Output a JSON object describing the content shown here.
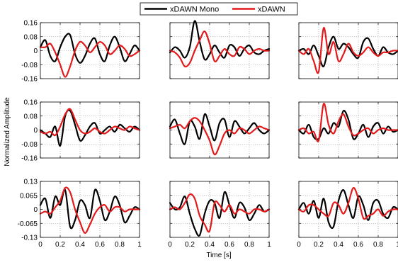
{
  "figure": {
    "ylabel": "Normalized Amplitude",
    "xlabel": "Time [s]"
  },
  "legend": {
    "entries": [
      {
        "name": "xDAWN Mono",
        "color": "#000000"
      },
      {
        "name": "xDAWN",
        "color": "#e31a1c"
      }
    ],
    "placement": "top-center"
  },
  "chart_data": [
    {
      "type": "line",
      "row": 1,
      "col": 1,
      "xlim": [
        0,
        1
      ],
      "ylim": [
        -0.16,
        0.16
      ],
      "yticks": [
        "0.16",
        "0.08",
        "0",
        "-0.08",
        "-0.16"
      ],
      "xticks": [],
      "x": [
        0,
        0.05,
        0.1,
        0.15,
        0.2,
        0.25,
        0.3,
        0.35,
        0.4,
        0.45,
        0.5,
        0.55,
        0.6,
        0.65,
        0.7,
        0.75,
        0.8,
        0.85,
        0.9,
        0.95,
        1.0
      ],
      "series": [
        {
          "name": "xDAWN Mono",
          "color": "#000000",
          "values": [
            0.02,
            0.06,
            -0.03,
            -0.06,
            0.02,
            0.08,
            0.09,
            -0.02,
            -0.07,
            -0.03,
            0.04,
            0.07,
            -0.02,
            -0.06,
            0.03,
            0.08,
            0.02,
            -0.06,
            -0.02,
            0.03,
            0.0
          ]
        },
        {
          "name": "xDAWN",
          "color": "#e31a1c",
          "values": [
            0.02,
            0.02,
            0.04,
            -0.01,
            -0.08,
            -0.15,
            -0.09,
            0.0,
            0.05,
            0.03,
            -0.01,
            0.02,
            0.05,
            0.03,
            -0.02,
            0.0,
            0.03,
            0.01,
            -0.03,
            -0.02,
            0.0
          ]
        }
      ]
    },
    {
      "type": "line",
      "row": 1,
      "col": 2,
      "xlim": [
        0,
        1
      ],
      "ylim": [
        -0.16,
        0.16
      ],
      "x": [
        0,
        0.05,
        0.1,
        0.15,
        0.2,
        0.25,
        0.3,
        0.35,
        0.4,
        0.45,
        0.5,
        0.55,
        0.6,
        0.65,
        0.7,
        0.75,
        0.8,
        0.85,
        0.9,
        0.95,
        1.0
      ],
      "series": [
        {
          "name": "xDAWN Mono",
          "color": "#000000",
          "values": [
            -0.01,
            0.02,
            0.0,
            -0.04,
            0.02,
            0.17,
            0.05,
            -0.05,
            -0.02,
            0.03,
            -0.01,
            -0.04,
            0.03,
            0.02,
            -0.03,
            0.01,
            0.03,
            -0.01,
            -0.02,
            0.0,
            0.01
          ]
        },
        {
          "name": "xDAWN",
          "color": "#e31a1c",
          "values": [
            0.0,
            -0.01,
            -0.04,
            -0.09,
            -0.07,
            0.0,
            0.06,
            0.11,
            0.04,
            -0.06,
            -0.03,
            0.01,
            -0.02,
            -0.03,
            0.02,
            0.01,
            -0.02,
            0.0,
            0.01,
            0.0,
            0.0
          ]
        }
      ]
    },
    {
      "type": "line",
      "row": 1,
      "col": 3,
      "xlim": [
        0,
        1
      ],
      "ylim": [
        -0.16,
        0.16
      ],
      "x": [
        0,
        0.05,
        0.1,
        0.15,
        0.2,
        0.25,
        0.3,
        0.35,
        0.4,
        0.45,
        0.5,
        0.55,
        0.6,
        0.65,
        0.7,
        0.75,
        0.8,
        0.85,
        0.9,
        0.95,
        1.0
      ],
      "series": [
        {
          "name": "xDAWN Mono",
          "color": "#000000",
          "values": [
            0.0,
            0.01,
            -0.02,
            0.03,
            -0.03,
            -0.09,
            0.02,
            0.08,
            0.01,
            0.04,
            0.02,
            -0.02,
            -0.04,
            0.05,
            0.07,
            0.01,
            -0.03,
            0.02,
            -0.01,
            -0.02,
            0.0
          ]
        },
        {
          "name": "xDAWN",
          "color": "#e31a1c",
          "values": [
            0.0,
            -0.02,
            0.01,
            -0.06,
            -0.12,
            0.13,
            -0.02,
            0.05,
            -0.06,
            -0.02,
            0.04,
            -0.01,
            -0.03,
            -0.01,
            0.02,
            -0.01,
            -0.03,
            -0.01,
            -0.01,
            0.0,
            0.0
          ]
        }
      ]
    },
    {
      "type": "line",
      "row": 2,
      "col": 1,
      "xlim": [
        0,
        1
      ],
      "ylim": [
        -0.16,
        0.16
      ],
      "yticks": [
        "0.16",
        "0.08",
        "0",
        "-0.08",
        "-0.16"
      ],
      "xticks": [],
      "x": [
        0,
        0.05,
        0.1,
        0.15,
        0.2,
        0.25,
        0.3,
        0.35,
        0.4,
        0.45,
        0.5,
        0.55,
        0.6,
        0.65,
        0.7,
        0.75,
        0.8,
        0.85,
        0.9,
        0.95,
        1.0
      ],
      "series": [
        {
          "name": "xDAWN Mono",
          "color": "#000000",
          "values": [
            0.0,
            -0.02,
            -0.04,
            0.02,
            -0.09,
            0.08,
            0.11,
            0.03,
            -0.06,
            -0.03,
            0.02,
            0.04,
            -0.02,
            0.0,
            0.02,
            -0.01,
            0.03,
            0.01,
            -0.01,
            0.02,
            0.0
          ]
        },
        {
          "name": "xDAWN",
          "color": "#e31a1c",
          "values": [
            -0.01,
            -0.02,
            -0.01,
            -0.03,
            0.02,
            0.09,
            0.12,
            0.06,
            0.0,
            -0.02,
            -0.01,
            0.01,
            -0.01,
            -0.02,
            0.0,
            0.02,
            0.01,
            0.0,
            0.02,
            0.01,
            0.0
          ]
        }
      ]
    },
    {
      "type": "line",
      "row": 2,
      "col": 2,
      "xlim": [
        0,
        1
      ],
      "ylim": [
        -0.16,
        0.16
      ],
      "x": [
        0,
        0.05,
        0.1,
        0.15,
        0.2,
        0.25,
        0.3,
        0.35,
        0.4,
        0.45,
        0.5,
        0.55,
        0.6,
        0.65,
        0.7,
        0.75,
        0.8,
        0.85,
        0.9,
        0.95,
        1.0
      ],
      "series": [
        {
          "name": "xDAWN Mono",
          "color": "#000000",
          "values": [
            0.02,
            0.06,
            -0.02,
            -0.08,
            0.05,
            0.02,
            -0.05,
            0.09,
            0.02,
            -0.06,
            0.04,
            0.06,
            -0.04,
            0.05,
            0.02,
            -0.02,
            0.01,
            0.04,
            0.0,
            -0.02,
            0.0
          ]
        },
        {
          "name": "xDAWN",
          "color": "#e31a1c",
          "values": [
            0.01,
            0.02,
            0.03,
            0.01,
            0.05,
            0.07,
            0.05,
            0.0,
            -0.06,
            -0.14,
            -0.09,
            -0.02,
            0.0,
            -0.02,
            0.01,
            0.0,
            -0.02,
            0.0,
            0.02,
            0.01,
            0.0
          ]
        }
      ]
    },
    {
      "type": "line",
      "row": 2,
      "col": 3,
      "xlim": [
        0,
        1
      ],
      "ylim": [
        -0.16,
        0.16
      ],
      "x": [
        0,
        0.05,
        0.1,
        0.15,
        0.2,
        0.25,
        0.3,
        0.35,
        0.4,
        0.45,
        0.5,
        0.55,
        0.6,
        0.65,
        0.7,
        0.75,
        0.8,
        0.85,
        0.9,
        0.95,
        1.0
      ],
      "series": [
        {
          "name": "xDAWN Mono",
          "color": "#000000",
          "values": [
            0.0,
            -0.02,
            0.03,
            -0.04,
            -0.05,
            0.01,
            -0.02,
            0.04,
            0.02,
            0.11,
            0.06,
            -0.05,
            -0.02,
            0.03,
            -0.04,
            0.02,
            0.04,
            -0.02,
            0.02,
            -0.01,
            0.0
          ]
        },
        {
          "name": "xDAWN",
          "color": "#e31a1c",
          "values": [
            0.0,
            0.01,
            -0.02,
            -0.01,
            -0.06,
            0.15,
            0.03,
            -0.02,
            0.05,
            0.09,
            0.02,
            -0.03,
            -0.02,
            0.0,
            0.01,
            -0.02,
            0.0,
            0.01,
            0.0,
            0.0,
            0.0
          ]
        }
      ]
    },
    {
      "type": "line",
      "row": 3,
      "col": 1,
      "xlim": [
        0,
        1
      ],
      "ylim": [
        -0.13,
        0.13
      ],
      "yticks": [
        "0.13",
        "0.065",
        "0",
        "-0.065",
        "-0.13"
      ],
      "xticks": [
        "0",
        "0.2",
        "0.4",
        "0.6",
        "0.8",
        "1"
      ],
      "x": [
        0,
        0.05,
        0.1,
        0.15,
        0.2,
        0.25,
        0.3,
        0.35,
        0.4,
        0.45,
        0.5,
        0.55,
        0.6,
        0.65,
        0.7,
        0.75,
        0.8,
        0.85,
        0.9,
        0.95,
        1.0
      ],
      "series": [
        {
          "name": "xDAWN Mono",
          "color": "#000000",
          "values": [
            0.02,
            0.05,
            -0.04,
            0.06,
            0.02,
            0.09,
            -0.08,
            -0.05,
            0.04,
            0.02,
            -0.04,
            0.09,
            0.04,
            -0.05,
            -0.01,
            0.06,
            0.02,
            -0.06,
            -0.03,
            0.01,
            0.0
          ]
        },
        {
          "name": "xDAWN",
          "color": "#e31a1c",
          "values": [
            -0.02,
            -0.01,
            -0.02,
            0.01,
            0.04,
            0.1,
            0.08,
            0.0,
            -0.06,
            -0.11,
            -0.07,
            -0.02,
            0.01,
            0.02,
            -0.01,
            0.01,
            0.01,
            -0.01,
            0.0,
            0.0,
            0.0
          ]
        }
      ]
    },
    {
      "type": "line",
      "row": 3,
      "col": 2,
      "xlim": [
        0,
        1
      ],
      "ylim": [
        -0.13,
        0.13
      ],
      "xticks": [
        "0",
        "0.2",
        "0.4",
        "0.6",
        "0.8",
        "1"
      ],
      "x": [
        0,
        0.05,
        0.1,
        0.15,
        0.2,
        0.25,
        0.3,
        0.35,
        0.4,
        0.45,
        0.5,
        0.55,
        0.6,
        0.65,
        0.7,
        0.75,
        0.8,
        0.85,
        0.9,
        0.95,
        1.0
      ],
      "series": [
        {
          "name": "xDAWN Mono",
          "color": "#000000",
          "values": [
            0.03,
            0.0,
            0.01,
            0.06,
            -0.02,
            -0.09,
            -0.12,
            -0.02,
            0.04,
            0.03,
            -0.04,
            0.08,
            0.02,
            -0.04,
            0.03,
            0.01,
            -0.05,
            -0.02,
            0.02,
            -0.01,
            0.0
          ]
        },
        {
          "name": "xDAWN",
          "color": "#e31a1c",
          "values": [
            0.0,
            0.01,
            0.0,
            0.03,
            0.07,
            0.05,
            -0.03,
            -0.07,
            -0.1,
            0.03,
            0.02,
            -0.01,
            0.02,
            -0.02,
            0.0,
            -0.01,
            -0.02,
            0.0,
            0.0,
            -0.01,
            0.0
          ]
        }
      ]
    },
    {
      "type": "line",
      "row": 3,
      "col": 3,
      "xlim": [
        0,
        1
      ],
      "ylim": [
        -0.13,
        0.13
      ],
      "xticks": [
        "0",
        "0.2",
        "0.4",
        "0.6",
        "0.8",
        "1"
      ],
      "x": [
        0,
        0.05,
        0.1,
        0.15,
        0.2,
        0.25,
        0.3,
        0.35,
        0.4,
        0.45,
        0.5,
        0.55,
        0.6,
        0.65,
        0.7,
        0.75,
        0.8,
        0.85,
        0.9,
        0.95,
        1.0
      ],
      "series": [
        {
          "name": "xDAWN Mono",
          "color": "#000000",
          "values": [
            0.0,
            0.03,
            -0.02,
            0.04,
            -0.04,
            0.05,
            -0.06,
            -0.08,
            0.04,
            0.09,
            0.02,
            -0.04,
            0.06,
            0.02,
            -0.05,
            0.03,
            0.04,
            -0.02,
            -0.04,
            0.01,
            0.0
          ]
        },
        {
          "name": "xDAWN",
          "color": "#e31a1c",
          "values": [
            0.0,
            -0.01,
            0.02,
            0.02,
            0.0,
            -0.02,
            -0.03,
            0.03,
            0.02,
            -0.02,
            0.03,
            0.1,
            0.05,
            -0.04,
            -0.03,
            -0.02,
            0.0,
            -0.03,
            -0.01,
            0.0,
            0.0
          ]
        }
      ]
    }
  ]
}
